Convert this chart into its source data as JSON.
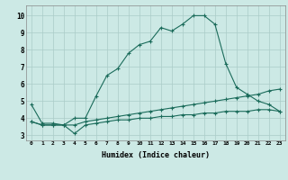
{
  "xlabel": "Humidex (Indice chaleur)",
  "bg_color": "#cce9e5",
  "grid_color": "#aaccc8",
  "line_color": "#1a6b5a",
  "xlim": [
    -0.5,
    23.5
  ],
  "ylim": [
    2.7,
    10.6
  ],
  "yticks": [
    3,
    4,
    5,
    6,
    7,
    8,
    9,
    10
  ],
  "xticks": [
    0,
    1,
    2,
    3,
    4,
    5,
    6,
    7,
    8,
    9,
    10,
    11,
    12,
    13,
    14,
    15,
    16,
    17,
    18,
    19,
    20,
    21,
    22,
    23
  ],
  "line1_x": [
    0,
    1,
    2,
    3,
    4,
    5,
    6,
    7,
    8,
    9,
    10,
    11,
    12,
    13,
    14,
    15,
    16,
    17,
    18,
    19,
    20,
    21,
    22,
    23
  ],
  "line1_y": [
    4.8,
    3.7,
    3.7,
    3.6,
    4.0,
    4.0,
    5.3,
    6.5,
    6.9,
    7.8,
    8.3,
    8.5,
    9.3,
    9.1,
    9.5,
    10.0,
    10.0,
    9.5,
    7.2,
    5.8,
    5.4,
    5.0,
    4.8,
    4.4
  ],
  "line2_x": [
    0,
    1,
    2,
    3,
    4,
    5,
    6,
    7,
    8,
    9,
    10,
    11,
    12,
    13,
    14,
    15,
    16,
    17,
    18,
    19,
    20,
    21,
    22,
    23
  ],
  "line2_y": [
    3.8,
    3.6,
    3.6,
    3.6,
    3.6,
    3.8,
    3.9,
    4.0,
    4.1,
    4.2,
    4.3,
    4.4,
    4.5,
    4.6,
    4.7,
    4.8,
    4.9,
    5.0,
    5.1,
    5.2,
    5.3,
    5.4,
    5.6,
    5.7
  ],
  "line3_x": [
    0,
    1,
    2,
    3,
    4,
    5,
    6,
    7,
    8,
    9,
    10,
    11,
    12,
    13,
    14,
    15,
    16,
    17,
    18,
    19,
    20,
    21,
    22,
    23
  ],
  "line3_y": [
    3.8,
    3.6,
    3.6,
    3.6,
    3.1,
    3.6,
    3.7,
    3.8,
    3.9,
    3.9,
    4.0,
    4.0,
    4.1,
    4.1,
    4.2,
    4.2,
    4.3,
    4.3,
    4.4,
    4.4,
    4.4,
    4.5,
    4.5,
    4.4
  ]
}
